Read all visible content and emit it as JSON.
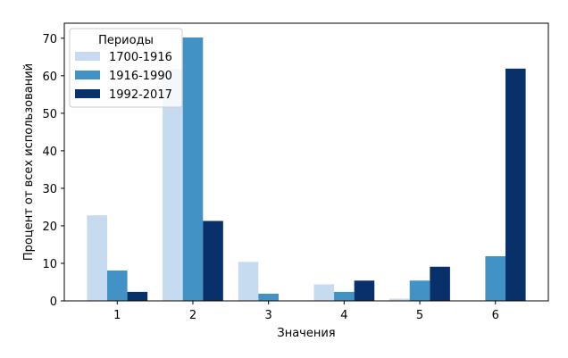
{
  "chart_data": {
    "type": "bar",
    "title": "",
    "xlabel": "Значения",
    "ylabel": "Процент от всех использований",
    "categories": [
      "1",
      "2",
      "3",
      "4",
      "5",
      "6"
    ],
    "ylim": [
      0,
      74
    ],
    "yticks": [
      0,
      10,
      20,
      30,
      40,
      50,
      60,
      70
    ],
    "grid": false,
    "legend": {
      "title": "Периоды",
      "placement": "top-left"
    },
    "series": [
      {
        "name": "1700-1916",
        "color": "#c6dbef",
        "values": [
          22.8,
          61.8,
          10.4,
          4.4,
          0.6,
          0.0
        ]
      },
      {
        "name": "1916-1990",
        "color": "#4292c6",
        "values": [
          8.1,
          70.2,
          1.9,
          2.4,
          5.4,
          11.9
        ]
      },
      {
        "name": "1992-2017",
        "color": "#08306b",
        "values": [
          2.4,
          21.3,
          0.0,
          5.4,
          9.1,
          61.9
        ]
      }
    ]
  }
}
